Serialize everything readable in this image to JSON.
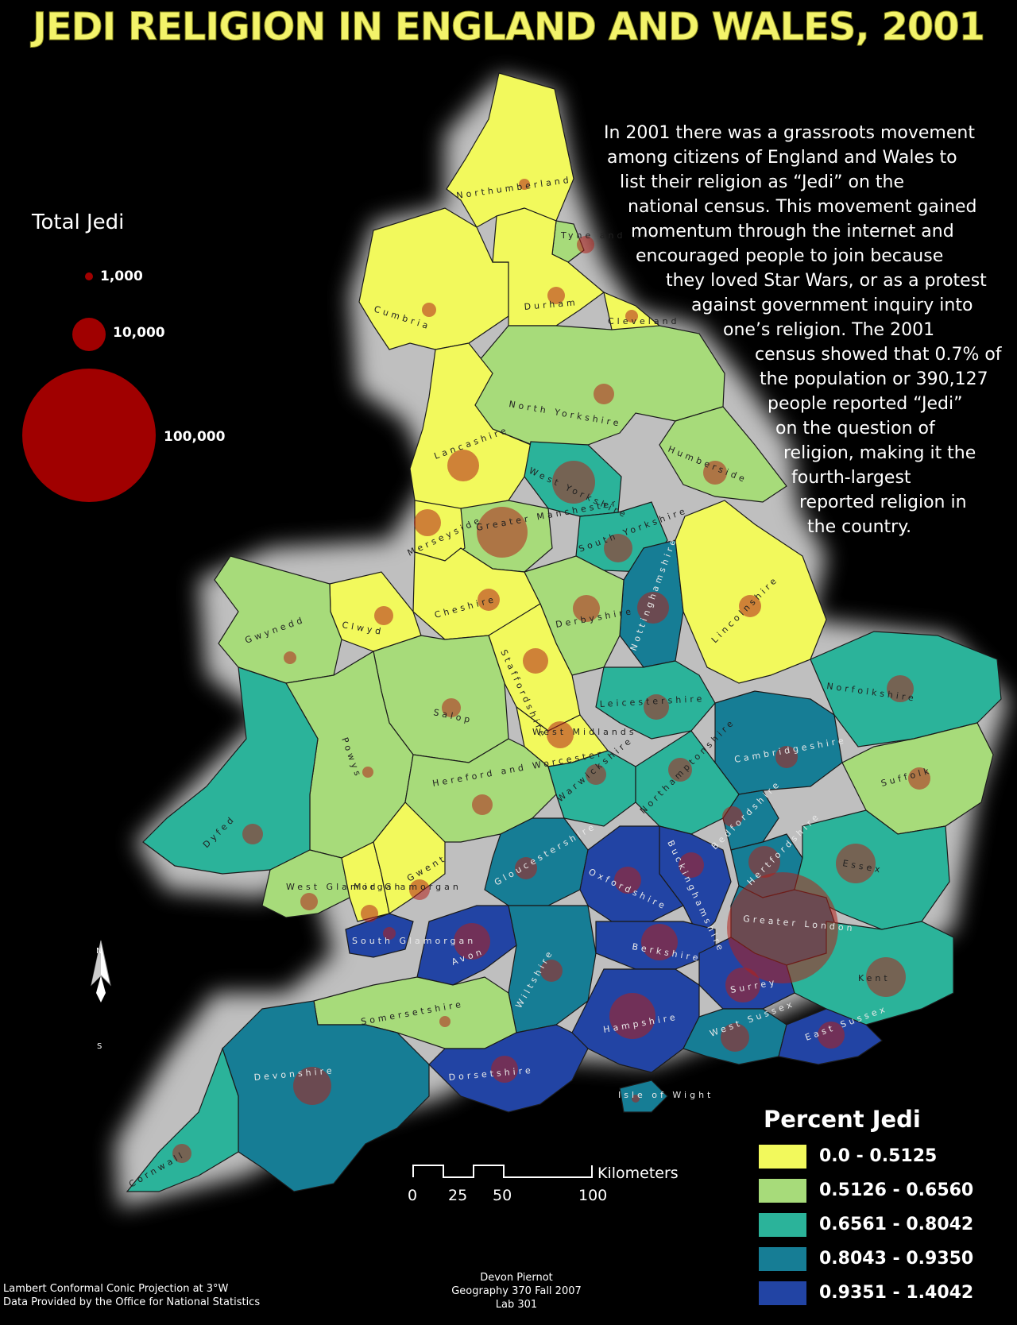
{
  "title": "JEDI RELIGION IN ENGLAND AND WALES, 2001",
  "description": [
    "In 2001 there was a grassroots movement",
    "among citizens of England and Wales to",
    "list their religion as “Jedi” on the",
    "national census.  This movement gained",
    "momentum through the internet and",
    "encouraged people to join because",
    "they loved Star Wars, or as a protest",
    "against government inquiry into",
    "one’s religion. The 2001",
    "census showed that 0.7% of",
    "the population or 390,127",
    "people reported “Jedi”",
    "on the question of",
    "religion, making it the",
    "fourth-largest",
    "reported religion in",
    "the country."
  ],
  "total_legend": {
    "title": "Total Jedi",
    "items": [
      {
        "label": "1,000",
        "value": 1000
      },
      {
        "label": "10,000",
        "value": 10000
      },
      {
        "label": "100,000",
        "value": 100000
      }
    ]
  },
  "percent_legend": {
    "title": "Percent Jedi",
    "classes": [
      {
        "label": "0.0 - 0.5125",
        "color": "#f2f95c"
      },
      {
        "label": "0.5126 - 0.6560",
        "color": "#a7db7a"
      },
      {
        "label": "0.6561 - 0.8042",
        "color": "#2bb39a"
      },
      {
        "label": "0.8043 - 0.9350",
        "color": "#167d95"
      },
      {
        "label": "0.9351 - 1.4042",
        "color": "#2244a4"
      }
    ]
  },
  "symbol_color": "#b2201a",
  "regions": [
    {
      "name": "Northumberland",
      "class": 0
    },
    {
      "name": "Tyne and Wear",
      "class": 1
    },
    {
      "name": "Cumbria",
      "class": 0
    },
    {
      "name": "Durham",
      "class": 0
    },
    {
      "name": "Cleveland",
      "class": 0
    },
    {
      "name": "North Yorkshire",
      "class": 1
    },
    {
      "name": "Lancashire",
      "class": 0
    },
    {
      "name": "West Yorkshire",
      "class": 2
    },
    {
      "name": "Humberside",
      "class": 1
    },
    {
      "name": "Greater Manchester",
      "class": 1
    },
    {
      "name": "Merseyside",
      "class": 0
    },
    {
      "name": "South Yorkshire",
      "class": 2
    },
    {
      "name": "Nottinghamshire",
      "class": 3
    },
    {
      "name": "Lincolnshire",
      "class": 0
    },
    {
      "name": "Cheshire",
      "class": 0
    },
    {
      "name": "Derbyshire",
      "class": 1
    },
    {
      "name": "Clwyd",
      "class": 0
    },
    {
      "name": "Gwynedd",
      "class": 1
    },
    {
      "name": "Staffordshire",
      "class": 0
    },
    {
      "name": "Salop",
      "class": 1
    },
    {
      "name": "Leicestershire",
      "class": 2
    },
    {
      "name": "Norfolkshire",
      "class": 2
    },
    {
      "name": "West Midlands",
      "class": 0
    },
    {
      "name": "Powys",
      "class": 1
    },
    {
      "name": "Cambridgeshire",
      "class": 3
    },
    {
      "name": "Suffolk",
      "class": 1
    },
    {
      "name": "Dyfed",
      "class": 2
    },
    {
      "name": "Hereford and Worcester",
      "class": 1
    },
    {
      "name": "Warwickshire",
      "class": 2
    },
    {
      "name": "Northamptonshire",
      "class": 2
    },
    {
      "name": "Bedfordshire",
      "class": 3
    },
    {
      "name": "Gloucestershire",
      "class": 3
    },
    {
      "name": "Buckinghamshire",
      "class": 4
    },
    {
      "name": "Hertfordshire",
      "class": 3
    },
    {
      "name": "Essex",
      "class": 2
    },
    {
      "name": "Oxfordshire",
      "class": 4
    },
    {
      "name": "West Glamorgan",
      "class": 1
    },
    {
      "name": "Mid Glamorgan",
      "class": 0
    },
    {
      "name": "Gwent",
      "class": 0
    },
    {
      "name": "South Glamorgan",
      "class": 4
    },
    {
      "name": "Greater London",
      "class": 3
    },
    {
      "name": "Avon",
      "class": 4
    },
    {
      "name": "Wiltshire",
      "class": 3
    },
    {
      "name": "Berkshire",
      "class": 4
    },
    {
      "name": "Surrey",
      "class": 4
    },
    {
      "name": "Kent",
      "class": 2
    },
    {
      "name": "Somersetshire",
      "class": 1
    },
    {
      "name": "Hampshire",
      "class": 4
    },
    {
      "name": "West Sussex",
      "class": 3
    },
    {
      "name": "East Sussex",
      "class": 4
    },
    {
      "name": "Devonshire",
      "class": 3
    },
    {
      "name": "Dorsetshire",
      "class": 4
    },
    {
      "name": "Isle of Wight",
      "class": 3
    },
    {
      "name": "Cornwall",
      "class": 2
    }
  ],
  "compass": {
    "n": "N",
    "s": "S"
  },
  "scale_bar": {
    "unit": "Kilometers",
    "ticks": [
      "0",
      "25",
      "50",
      "100"
    ]
  },
  "footer_left": [
    "Lambert Conformal Conic Projection at 3°W",
    "Data Provided by the Office for National Statistics"
  ],
  "footer_center": [
    "Devon Piernot",
    "Geography 370 Fall 2007",
    "Lab 301"
  ]
}
